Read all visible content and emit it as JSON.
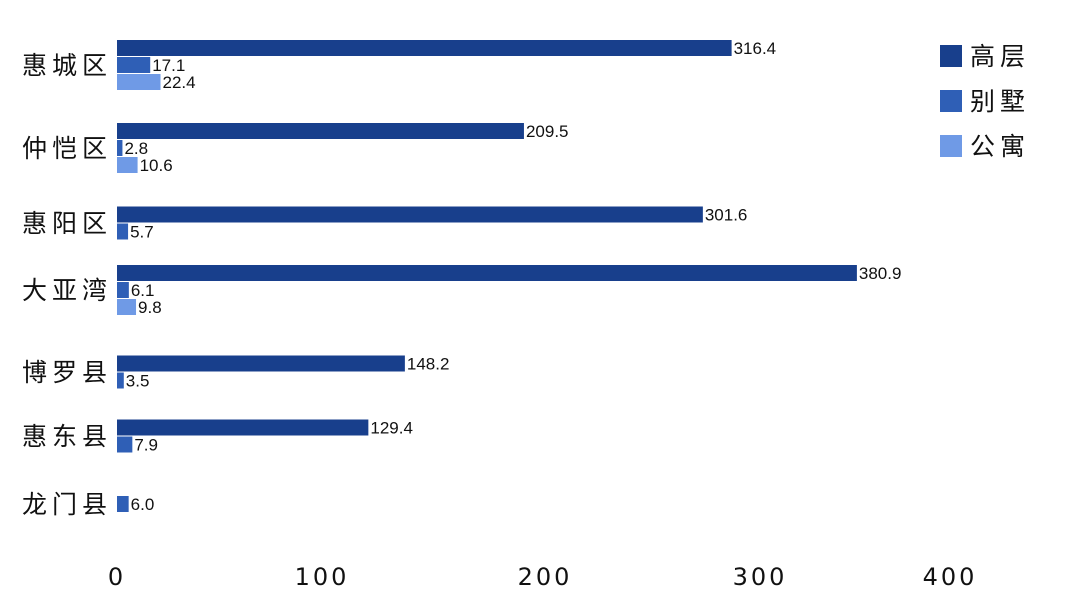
{
  "chart_data": {
    "type": "bar",
    "orientation": "horizontal",
    "title": "",
    "xlabel": "",
    "ylabel": "",
    "categories": [
      "惠城区",
      "仲恺区",
      "惠阳区",
      "大亚湾",
      "博罗县",
      "惠东县",
      "龙门县"
    ],
    "series": [
      {
        "name": "高层",
        "color": "#183f8c",
        "values": [
          316.4,
          209.5,
          301.6,
          380.9,
          148.2,
          129.4,
          null
        ]
      },
      {
        "name": "别墅",
        "color": "#2f5fb6",
        "values": [
          17.1,
          2.8,
          5.7,
          6.1,
          3.5,
          7.9,
          6.0
        ]
      },
      {
        "name": "公寓",
        "color": "#6f9ae6",
        "values": [
          22.4,
          10.6,
          null,
          9.8,
          null,
          null,
          null
        ]
      }
    ],
    "value_labels": [
      [
        "316.4",
        "17.1",
        "22.4"
      ],
      [
        "209.5",
        "2.8",
        "10.6"
      ],
      [
        "301.6",
        "5.7",
        null
      ],
      [
        "380.9",
        "6.1",
        "9.8"
      ],
      [
        "148.2",
        "3.5",
        null
      ],
      [
        "129.4",
        "7.9",
        null
      ],
      [
        null,
        "6.0",
        null
      ]
    ],
    "xlim": [
      0,
      400
    ],
    "xticks": [
      "0",
      "100",
      "200",
      "300",
      "400"
    ],
    "grid": false,
    "legend": "top-right"
  }
}
